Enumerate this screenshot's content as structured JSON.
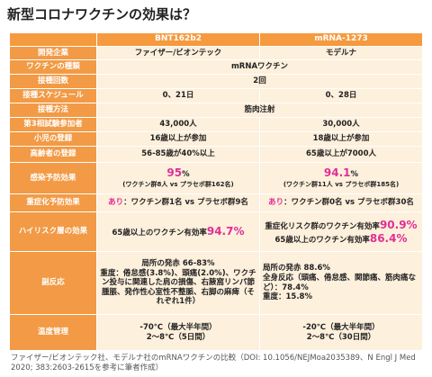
{
  "title": "新型コロナワクチンの効果は？",
  "table": {
    "header": [
      "BNT162b2",
      "mRNA-1273"
    ],
    "rows": [
      {
        "label": "開発企業",
        "cells": [
          [
            [
              {
                "t": "ファイザー/ビオンテック"
              }
            ]
          ],
          [
            [
              {
                "t": "モデルナ"
              }
            ]
          ]
        ]
      },
      {
        "label": "ワクチンの種類",
        "cells": [
          [
            [
              {
                "t": "mRNAワクチン"
              }
            ]
          ]
        ]
      },
      {
        "label": "接種回数",
        "cells": [
          [
            [
              {
                "t": "2回"
              }
            ]
          ]
        ]
      },
      {
        "label": "接種スケジュール",
        "cells": [
          [
            [
              {
                "t": "0、21日"
              }
            ]
          ],
          [
            [
              {
                "t": "0、28日"
              }
            ]
          ]
        ]
      },
      {
        "label": "接種方法",
        "cells": [
          [
            [
              {
                "t": "筋肉注射"
              }
            ]
          ]
        ]
      },
      {
        "label": "第3相試験参加者",
        "cells": [
          [
            [
              {
                "t": "43,000人"
              }
            ]
          ],
          [
            [
              {
                "t": "30,000人"
              }
            ]
          ]
        ]
      },
      {
        "label": "小児の登録",
        "cells": [
          [
            [
              {
                "t": "16歳以上が参加"
              }
            ]
          ],
          [
            [
              {
                "t": "18歳以上が参加"
              }
            ]
          ]
        ]
      },
      {
        "label": "高齢者の登録",
        "cells": [
          [
            [
              {
                "t": "56-85歳が40%以上"
              }
            ]
          ],
          [
            [
              {
                "t": "65歳以上が7000人"
              }
            ]
          ]
        ]
      },
      {
        "label": "感染予防効果",
        "cells": [
          [
            [
              {
                "t": "95",
                "hl": true,
                "big": true
              },
              {
                "t": "%"
              }
            ],
            [
              {
                "t": "(ワクチン群8人 vs プラセボ群162名)",
                "small": true
              }
            ]
          ],
          [
            [
              {
                "t": "94.1",
                "hl": true,
                "big": true
              },
              {
                "t": "%"
              }
            ],
            [
              {
                "t": "(ワクチン群11人 vs プラセボ群185名)",
                "small": true
              }
            ]
          ]
        ]
      },
      {
        "label": "重症化予防効果",
        "cells": [
          [
            [
              {
                "t": "あり",
                "hl": true
              },
              {
                "t": "：ワクチン群1名 vs プラセボ群9名"
              }
            ]
          ],
          [
            [
              {
                "t": "あり",
                "hl": true
              },
              {
                "t": "：ワクチン群0名 vs プラセボ群30名"
              }
            ]
          ]
        ]
      },
      {
        "label": "ハイリスク層の効果",
        "cells": [
          [
            [
              {
                "t": "65歳以上のワクチン有効率"
              },
              {
                "t": "94.7%",
                "hl": true,
                "big": true
              }
            ]
          ],
          [
            [
              {
                "t": "重症化リスク群のワクチン有効率"
              },
              {
                "t": "90.9%",
                "hl": true,
                "big": true
              }
            ],
            [
              {
                "t": "65歳以上のワクチン有効率"
              },
              {
                "t": "86.4%",
                "hl": true,
                "big": true
              }
            ]
          ]
        ]
      },
      {
        "label": "副反応",
        "cells": [
          [
            [
              {
                "t": "局所の発赤 66-83%"
              }
            ],
            [
              {
                "t": "重度：倦怠感(3.8%)、頭痛(2.0%)、ワクチン投与に関連した肩の損傷、右腋窩リンパ節腫脹、発作性心室性不整脈、右脚の麻痺（それぞれ1件）"
              }
            ]
          ],
          [
            [
              {
                "t": "局所の発赤 88.6%"
              }
            ],
            [
              {
                "t": "全身反応（頭痛、倦怠感、関節痛、筋肉痛など）：78.4%"
              }
            ],
            [
              {
                "t": "重度：15.8%"
              }
            ]
          ]
        ]
      },
      {
        "label": "温度管理",
        "cells": [
          [
            [
              {
                "t": "-70℃（最大半年間）"
              }
            ],
            [
              {
                "t": "2～8℃（5日間）"
              }
            ]
          ],
          [
            [
              {
                "t": "-20℃（最大半年間）"
              }
            ],
            [
              {
                "t": "2～8℃（30日間）"
              }
            ]
          ]
        ]
      }
    ]
  },
  "footer": "ファイザー/ビオンテック社、モデルナ社のmRNAワクチンの比較（DOI: 10.1056/NEJMoa2035389、N Engl J Med 2020; 383:2603-2615を参考に筆者作成）"
}
